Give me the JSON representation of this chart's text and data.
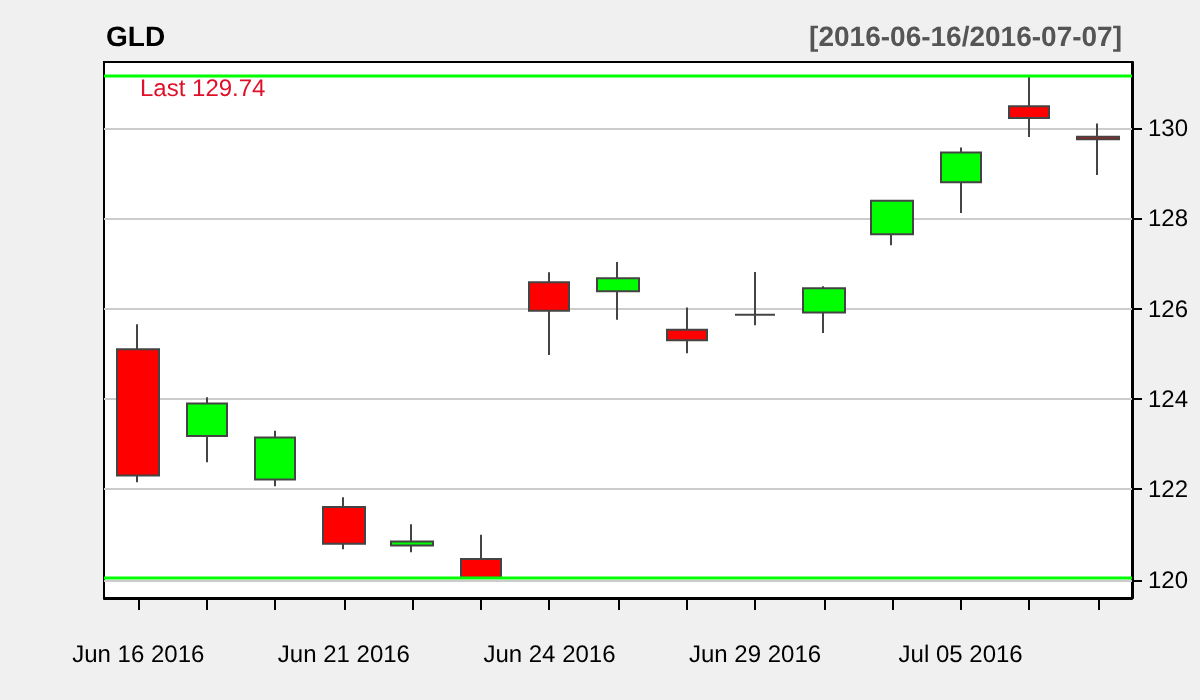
{
  "chart_data": {
    "type": "candlestick",
    "title": "GLD",
    "subtitle": "[2016-06-16/2016-07-07]",
    "annotations": [
      "Last 129.74"
    ],
    "categories": [
      "Jun 16 2016",
      null,
      null,
      "Jun 21 2016",
      null,
      null,
      "Jun 24 2016",
      null,
      null,
      "Jun 29 2016",
      null,
      null,
      "Jul 05 2016",
      null,
      null
    ],
    "ohlc": [
      [
        125.1,
        125.65,
        122.16,
        122.31
      ],
      [
        123.18,
        124.04,
        122.6,
        123.9
      ],
      [
        122.22,
        123.3,
        122.07,
        123.15
      ],
      [
        121.61,
        121.83,
        120.68,
        120.8
      ],
      [
        120.76,
        121.23,
        120.61,
        120.85
      ],
      [
        120.46,
        121.0,
        120.04,
        120.05
      ],
      [
        126.58,
        126.8,
        124.97,
        125.95
      ],
      [
        126.38,
        127.03,
        125.75,
        126.67
      ],
      [
        125.53,
        126.02,
        125.01,
        125.3
      ],
      [
        125.86,
        126.81,
        125.63,
        125.86
      ],
      [
        125.91,
        126.49,
        125.46,
        126.45
      ],
      [
        127.64,
        128.38,
        127.4,
        128.38
      ],
      [
        128.79,
        129.56,
        128.11,
        129.45
      ],
      [
        130.47,
        131.14,
        129.79,
        130.21
      ],
      [
        129.8,
        130.09,
        128.95,
        129.74
      ]
    ],
    "colors": [
      "#ff0000",
      "#00ff00",
      "#00ff00",
      "#ff0000",
      "#00ff00",
      "#ff0000",
      "#ff0000",
      "#00ff00",
      "#ff0000",
      "#444444",
      "#00ff00",
      "#00ff00",
      "#00ff00",
      "#ff0000",
      "#ff0000"
    ],
    "ylim": [
      119.6,
      131.45
    ],
    "yticks": [
      120,
      122,
      124,
      126,
      128,
      130
    ],
    "grid": "y",
    "ref_lines": [
      {
        "axis": "y",
        "value": 131.14,
        "color": "#00ff00"
      },
      {
        "axis": "y",
        "value": 120.04,
        "color": "#00ff00"
      }
    ]
  }
}
